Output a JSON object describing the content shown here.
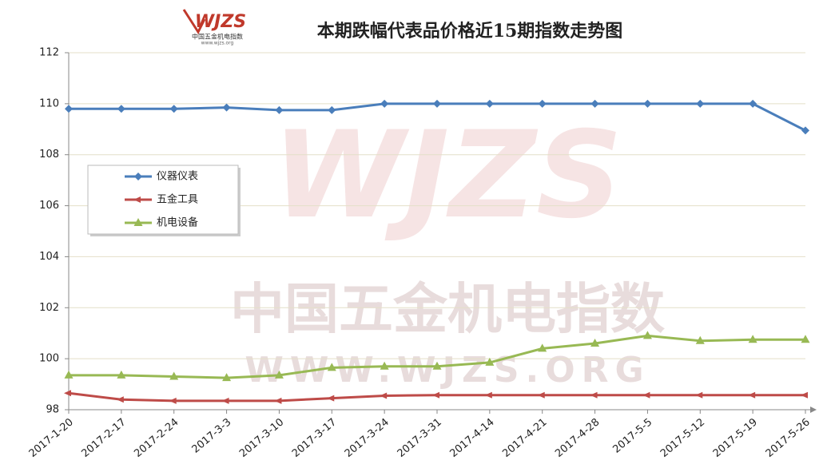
{
  "chart_data": {
    "type": "line",
    "title": "本期跌幅代表品价格近15期指数走势图",
    "logo": {
      "name": "WJZS",
      "subtitle": "中国五金机电指数",
      "url": "www.wjzs.org"
    },
    "watermark": {
      "name": "WJZS",
      "subtitle": "中国五金机电指数",
      "url": "WWW.WJZS.ORG"
    },
    "categories": [
      "2017-1-20",
      "2017-2-17",
      "2017-2-24",
      "2017-3-3",
      "2017-3-10",
      "2017-3-17",
      "2017-3-24",
      "2017-3-31",
      "2017-4-14",
      "2017-4-21",
      "2017-4-28",
      "2017-5-5",
      "2017-5-12",
      "2017-5-19",
      "2017-5-26"
    ],
    "series": [
      {
        "name": "仪器仪表",
        "color": "#4a7ebb",
        "marker": "diamond",
        "values": [
          109.8,
          109.8,
          109.8,
          109.85,
          109.75,
          109.75,
          110.0,
          110.0,
          110.0,
          110.0,
          110.0,
          110.0,
          110.0,
          110.0,
          108.95
        ]
      },
      {
        "name": "五金工具",
        "color": "#be4b48",
        "marker": "arrow",
        "values": [
          98.65,
          98.4,
          98.35,
          98.35,
          98.35,
          98.45,
          98.55,
          98.57,
          98.57,
          98.57,
          98.57,
          98.57,
          98.57,
          98.57,
          98.57
        ]
      },
      {
        "name": "机电设备",
        "color": "#98b954",
        "marker": "triangle",
        "values": [
          99.35,
          99.35,
          99.3,
          99.25,
          99.35,
          99.65,
          99.7,
          99.7,
          99.85,
          100.4,
          100.6,
          100.9,
          100.7,
          100.75,
          100.75
        ]
      }
    ],
    "ylim": [
      98,
      112
    ],
    "yticks": [
      98,
      100,
      102,
      104,
      106,
      108,
      110,
      112
    ],
    "grid": true,
    "legend": "left"
  }
}
